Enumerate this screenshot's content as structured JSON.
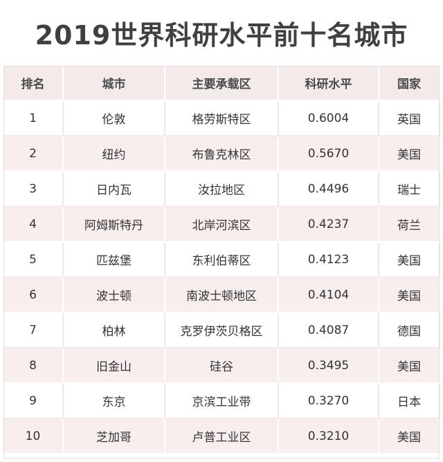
{
  "title": "2019世界科研水平前十名城市",
  "headers": [
    "排名",
    "城市",
    "主要承载区",
    "科研水平",
    "国家"
  ],
  "rows": [
    [
      "1",
      "伦敦",
      "格劳斯特区",
      "0.6004",
      "英国"
    ],
    [
      "2",
      "纽约",
      "布鲁克林区",
      "0.5670",
      "美国"
    ],
    [
      "3",
      "日内瓦",
      "汝拉地区",
      "0.4496",
      "瑞士"
    ],
    [
      "4",
      "阿姆斯特丹",
      "北岸河滨区",
      "0.4237",
      "荷兰"
    ],
    [
      "5",
      "匹兹堡",
      "东利伯蒂区",
      "0.4123",
      "美国"
    ],
    [
      "6",
      "波士顿",
      "南波士顿地区",
      "0.4104",
      "美国"
    ],
    [
      "7",
      "柏林",
      "克罗伊茨贝格区",
      "0.4087",
      "德国"
    ],
    [
      "8",
      "旧金山",
      "硅谷",
      "0.3495",
      "美国"
    ],
    [
      "9",
      "东京",
      "京滨工业带",
      "0.3270",
      "日本"
    ],
    [
      "10",
      "芝加哥",
      "卢普工业区",
      "0.3210",
      "美国"
    ]
  ]
}
